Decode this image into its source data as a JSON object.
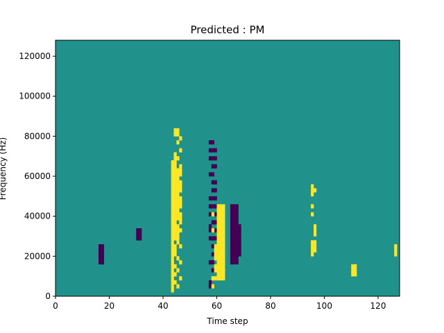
{
  "chart_data": {
    "type": "heatmap",
    "title": "Predicted : PM",
    "xlabel": "Time step",
    "ylabel": "Frequency (Hz)",
    "xlim": [
      0,
      128
    ],
    "ylim": [
      0,
      128000
    ],
    "x_ticks": [
      0,
      20,
      40,
      60,
      80,
      100,
      120
    ],
    "y_ticks": [
      0,
      20000,
      40000,
      60000,
      80000,
      100000,
      120000
    ],
    "x_tick_labels": [
      "0",
      "20",
      "40",
      "60",
      "80",
      "100",
      "120"
    ],
    "y_tick_labels": [
      "0",
      "20000",
      "40000",
      "60000",
      "80000",
      "100000",
      "120000"
    ],
    "n_time_steps": 128,
    "n_freq_bins": 64,
    "freq_bin_hz": 2000,
    "value_levels": [
      -1,
      0,
      1
    ],
    "colormap": {
      "-1": "#440154",
      "0": "#21918c",
      "1": "#fde725"
    },
    "background_value": 0,
    "cells_high": [
      [
        43,
        1
      ],
      [
        43,
        2
      ],
      [
        43,
        3
      ],
      [
        43,
        4
      ],
      [
        43,
        5
      ],
      [
        43,
        6
      ],
      [
        43,
        7
      ],
      [
        43,
        8
      ],
      [
        43,
        9
      ],
      [
        43,
        10
      ],
      [
        43,
        11
      ],
      [
        43,
        12
      ],
      [
        43,
        13
      ],
      [
        43,
        14
      ],
      [
        43,
        15
      ],
      [
        43,
        16
      ],
      [
        43,
        17
      ],
      [
        43,
        18
      ],
      [
        43,
        19
      ],
      [
        43,
        20
      ],
      [
        43,
        21
      ],
      [
        43,
        22
      ],
      [
        43,
        23
      ],
      [
        43,
        24
      ],
      [
        43,
        25
      ],
      [
        43,
        26
      ],
      [
        43,
        27
      ],
      [
        43,
        28
      ],
      [
        43,
        29
      ],
      [
        43,
        30
      ],
      [
        43,
        31
      ],
      [
        43,
        32
      ],
      [
        43,
        33
      ],
      [
        44,
        3
      ],
      [
        44,
        5
      ],
      [
        44,
        7
      ],
      [
        44,
        10
      ],
      [
        44,
        11
      ],
      [
        44,
        12
      ],
      [
        44,
        14
      ],
      [
        44,
        15
      ],
      [
        44,
        16
      ],
      [
        44,
        17
      ],
      [
        44,
        18
      ],
      [
        44,
        19
      ],
      [
        44,
        20
      ],
      [
        44,
        21
      ],
      [
        44,
        22
      ],
      [
        44,
        23
      ],
      [
        44,
        24
      ],
      [
        44,
        25
      ],
      [
        44,
        26
      ],
      [
        44,
        27
      ],
      [
        44,
        28
      ],
      [
        44,
        29
      ],
      [
        44,
        30
      ],
      [
        44,
        31
      ],
      [
        44,
        32
      ],
      [
        44,
        33
      ],
      [
        44,
        34
      ],
      [
        44,
        35
      ],
      [
        44,
        40
      ],
      [
        44,
        41
      ],
      [
        45,
        2
      ],
      [
        45,
        6
      ],
      [
        45,
        9
      ],
      [
        45,
        13
      ],
      [
        45,
        14
      ],
      [
        45,
        15
      ],
      [
        45,
        16
      ],
      [
        45,
        17
      ],
      [
        45,
        19
      ],
      [
        45,
        20
      ],
      [
        45,
        21
      ],
      [
        45,
        22
      ],
      [
        45,
        23
      ],
      [
        45,
        24
      ],
      [
        45,
        25
      ],
      [
        45,
        26
      ],
      [
        45,
        27
      ],
      [
        45,
        28
      ],
      [
        45,
        29
      ],
      [
        45,
        30
      ],
      [
        45,
        31
      ],
      [
        45,
        34
      ],
      [
        45,
        38
      ],
      [
        45,
        40
      ],
      [
        45,
        41
      ],
      [
        46,
        4
      ],
      [
        46,
        8
      ],
      [
        46,
        12
      ],
      [
        46,
        16
      ],
      [
        46,
        18
      ],
      [
        46,
        19
      ],
      [
        46,
        20
      ],
      [
        46,
        22
      ],
      [
        46,
        23
      ],
      [
        46,
        24
      ],
      [
        46,
        26
      ],
      [
        46,
        27
      ],
      [
        46,
        28
      ],
      [
        46,
        30
      ],
      [
        46,
        31
      ],
      [
        46,
        32
      ],
      [
        46,
        36
      ],
      [
        46,
        39
      ],
      [
        58,
        2
      ],
      [
        58,
        4
      ],
      [
        58,
        16
      ],
      [
        58,
        20
      ],
      [
        59,
        4
      ],
      [
        59,
        6
      ],
      [
        59,
        7
      ],
      [
        59,
        9
      ],
      [
        59,
        10
      ],
      [
        59,
        11
      ],
      [
        59,
        12
      ],
      [
        60,
        4
      ],
      [
        60,
        5
      ],
      [
        60,
        6
      ],
      [
        60,
        7
      ],
      [
        60,
        8
      ],
      [
        60,
        9
      ],
      [
        60,
        10
      ],
      [
        60,
        11
      ],
      [
        60,
        12
      ],
      [
        60,
        13
      ],
      [
        60,
        14
      ],
      [
        60,
        15
      ],
      [
        60,
        16
      ],
      [
        60,
        17
      ],
      [
        60,
        18
      ],
      [
        60,
        19
      ],
      [
        60,
        20
      ],
      [
        60,
        21
      ],
      [
        60,
        22
      ],
      [
        61,
        4
      ],
      [
        61,
        5
      ],
      [
        61,
        6
      ],
      [
        61,
        7
      ],
      [
        61,
        8
      ],
      [
        61,
        9
      ],
      [
        61,
        10
      ],
      [
        61,
        11
      ],
      [
        61,
        12
      ],
      [
        61,
        13
      ],
      [
        61,
        14
      ],
      [
        61,
        15
      ],
      [
        61,
        16
      ],
      [
        61,
        17
      ],
      [
        61,
        18
      ],
      [
        61,
        19
      ],
      [
        61,
        20
      ],
      [
        61,
        21
      ],
      [
        61,
        22
      ],
      [
        62,
        4
      ],
      [
        62,
        5
      ],
      [
        62,
        6
      ],
      [
        62,
        7
      ],
      [
        62,
        8
      ],
      [
        62,
        9
      ],
      [
        62,
        10
      ],
      [
        62,
        11
      ],
      [
        62,
        12
      ],
      [
        62,
        13
      ],
      [
        62,
        14
      ],
      [
        62,
        15
      ],
      [
        62,
        16
      ],
      [
        62,
        17
      ],
      [
        62,
        18
      ],
      [
        62,
        19
      ],
      [
        62,
        20
      ],
      [
        62,
        21
      ],
      [
        62,
        22
      ],
      [
        95,
        10
      ],
      [
        95,
        11
      ],
      [
        95,
        12
      ],
      [
        95,
        13
      ],
      [
        95,
        20
      ],
      [
        95,
        22
      ],
      [
        95,
        25
      ],
      [
        95,
        26
      ],
      [
        95,
        27
      ],
      [
        96,
        11
      ],
      [
        96,
        12
      ],
      [
        96,
        13
      ],
      [
        96,
        15
      ],
      [
        96,
        16
      ],
      [
        96,
        17
      ],
      [
        96,
        26
      ],
      [
        110,
        5
      ],
      [
        110,
        6
      ],
      [
        110,
        7
      ],
      [
        111,
        5
      ],
      [
        111,
        6
      ],
      [
        111,
        7
      ],
      [
        126,
        10
      ],
      [
        126,
        11
      ],
      [
        126,
        12
      ]
    ],
    "cells_low": [
      [
        57,
        2
      ],
      [
        57,
        3
      ],
      [
        57,
        8
      ],
      [
        57,
        14
      ],
      [
        57,
        16
      ],
      [
        57,
        17
      ],
      [
        57,
        20
      ],
      [
        57,
        22
      ],
      [
        57,
        24
      ],
      [
        57,
        30
      ],
      [
        57,
        34
      ],
      [
        57,
        36
      ],
      [
        57,
        38
      ],
      [
        58,
        6
      ],
      [
        58,
        8
      ],
      [
        58,
        10
      ],
      [
        58,
        12
      ],
      [
        58,
        14
      ],
      [
        58,
        18
      ],
      [
        58,
        22
      ],
      [
        58,
        24
      ],
      [
        58,
        26
      ],
      [
        58,
        28
      ],
      [
        58,
        30
      ],
      [
        58,
        32
      ],
      [
        58,
        34
      ],
      [
        58,
        36
      ],
      [
        58,
        38
      ],
      [
        59,
        14
      ],
      [
        59,
        16
      ],
      [
        59,
        18
      ],
      [
        59,
        20
      ],
      [
        59,
        22
      ],
      [
        59,
        24
      ],
      [
        59,
        26
      ],
      [
        59,
        28
      ],
      [
        59,
        32
      ],
      [
        59,
        34
      ],
      [
        59,
        36
      ],
      [
        65,
        8
      ],
      [
        65,
        9
      ],
      [
        65,
        10
      ],
      [
        65,
        11
      ],
      [
        65,
        12
      ],
      [
        65,
        13
      ],
      [
        65,
        14
      ],
      [
        65,
        15
      ],
      [
        65,
        16
      ],
      [
        65,
        17
      ],
      [
        65,
        18
      ],
      [
        65,
        19
      ],
      [
        65,
        20
      ],
      [
        65,
        21
      ],
      [
        65,
        22
      ],
      [
        66,
        8
      ],
      [
        66,
        9
      ],
      [
        66,
        10
      ],
      [
        66,
        11
      ],
      [
        66,
        12
      ],
      [
        66,
        13
      ],
      [
        66,
        14
      ],
      [
        66,
        15
      ],
      [
        66,
        16
      ],
      [
        66,
        17
      ],
      [
        66,
        18
      ],
      [
        66,
        19
      ],
      [
        66,
        20
      ],
      [
        66,
        21
      ],
      [
        66,
        22
      ],
      [
        67,
        8
      ],
      [
        67,
        9
      ],
      [
        67,
        10
      ],
      [
        67,
        11
      ],
      [
        67,
        12
      ],
      [
        67,
        13
      ],
      [
        67,
        14
      ],
      [
        67,
        15
      ],
      [
        67,
        16
      ],
      [
        67,
        17
      ],
      [
        67,
        18
      ],
      [
        67,
        19
      ],
      [
        67,
        20
      ],
      [
        67,
        21
      ],
      [
        67,
        22
      ],
      [
        68,
        10
      ],
      [
        68,
        11
      ],
      [
        68,
        12
      ],
      [
        68,
        13
      ],
      [
        68,
        14
      ],
      [
        68,
        15
      ],
      [
        68,
        16
      ],
      [
        68,
        17
      ],
      [
        30,
        14
      ],
      [
        30,
        15
      ],
      [
        30,
        16
      ],
      [
        31,
        14
      ],
      [
        31,
        15
      ],
      [
        31,
        16
      ],
      [
        16,
        8
      ],
      [
        16,
        9
      ],
      [
        16,
        10
      ],
      [
        16,
        11
      ],
      [
        16,
        12
      ],
      [
        17,
        8
      ],
      [
        17,
        9
      ],
      [
        17,
        10
      ],
      [
        17,
        11
      ],
      [
        17,
        12
      ]
    ]
  }
}
